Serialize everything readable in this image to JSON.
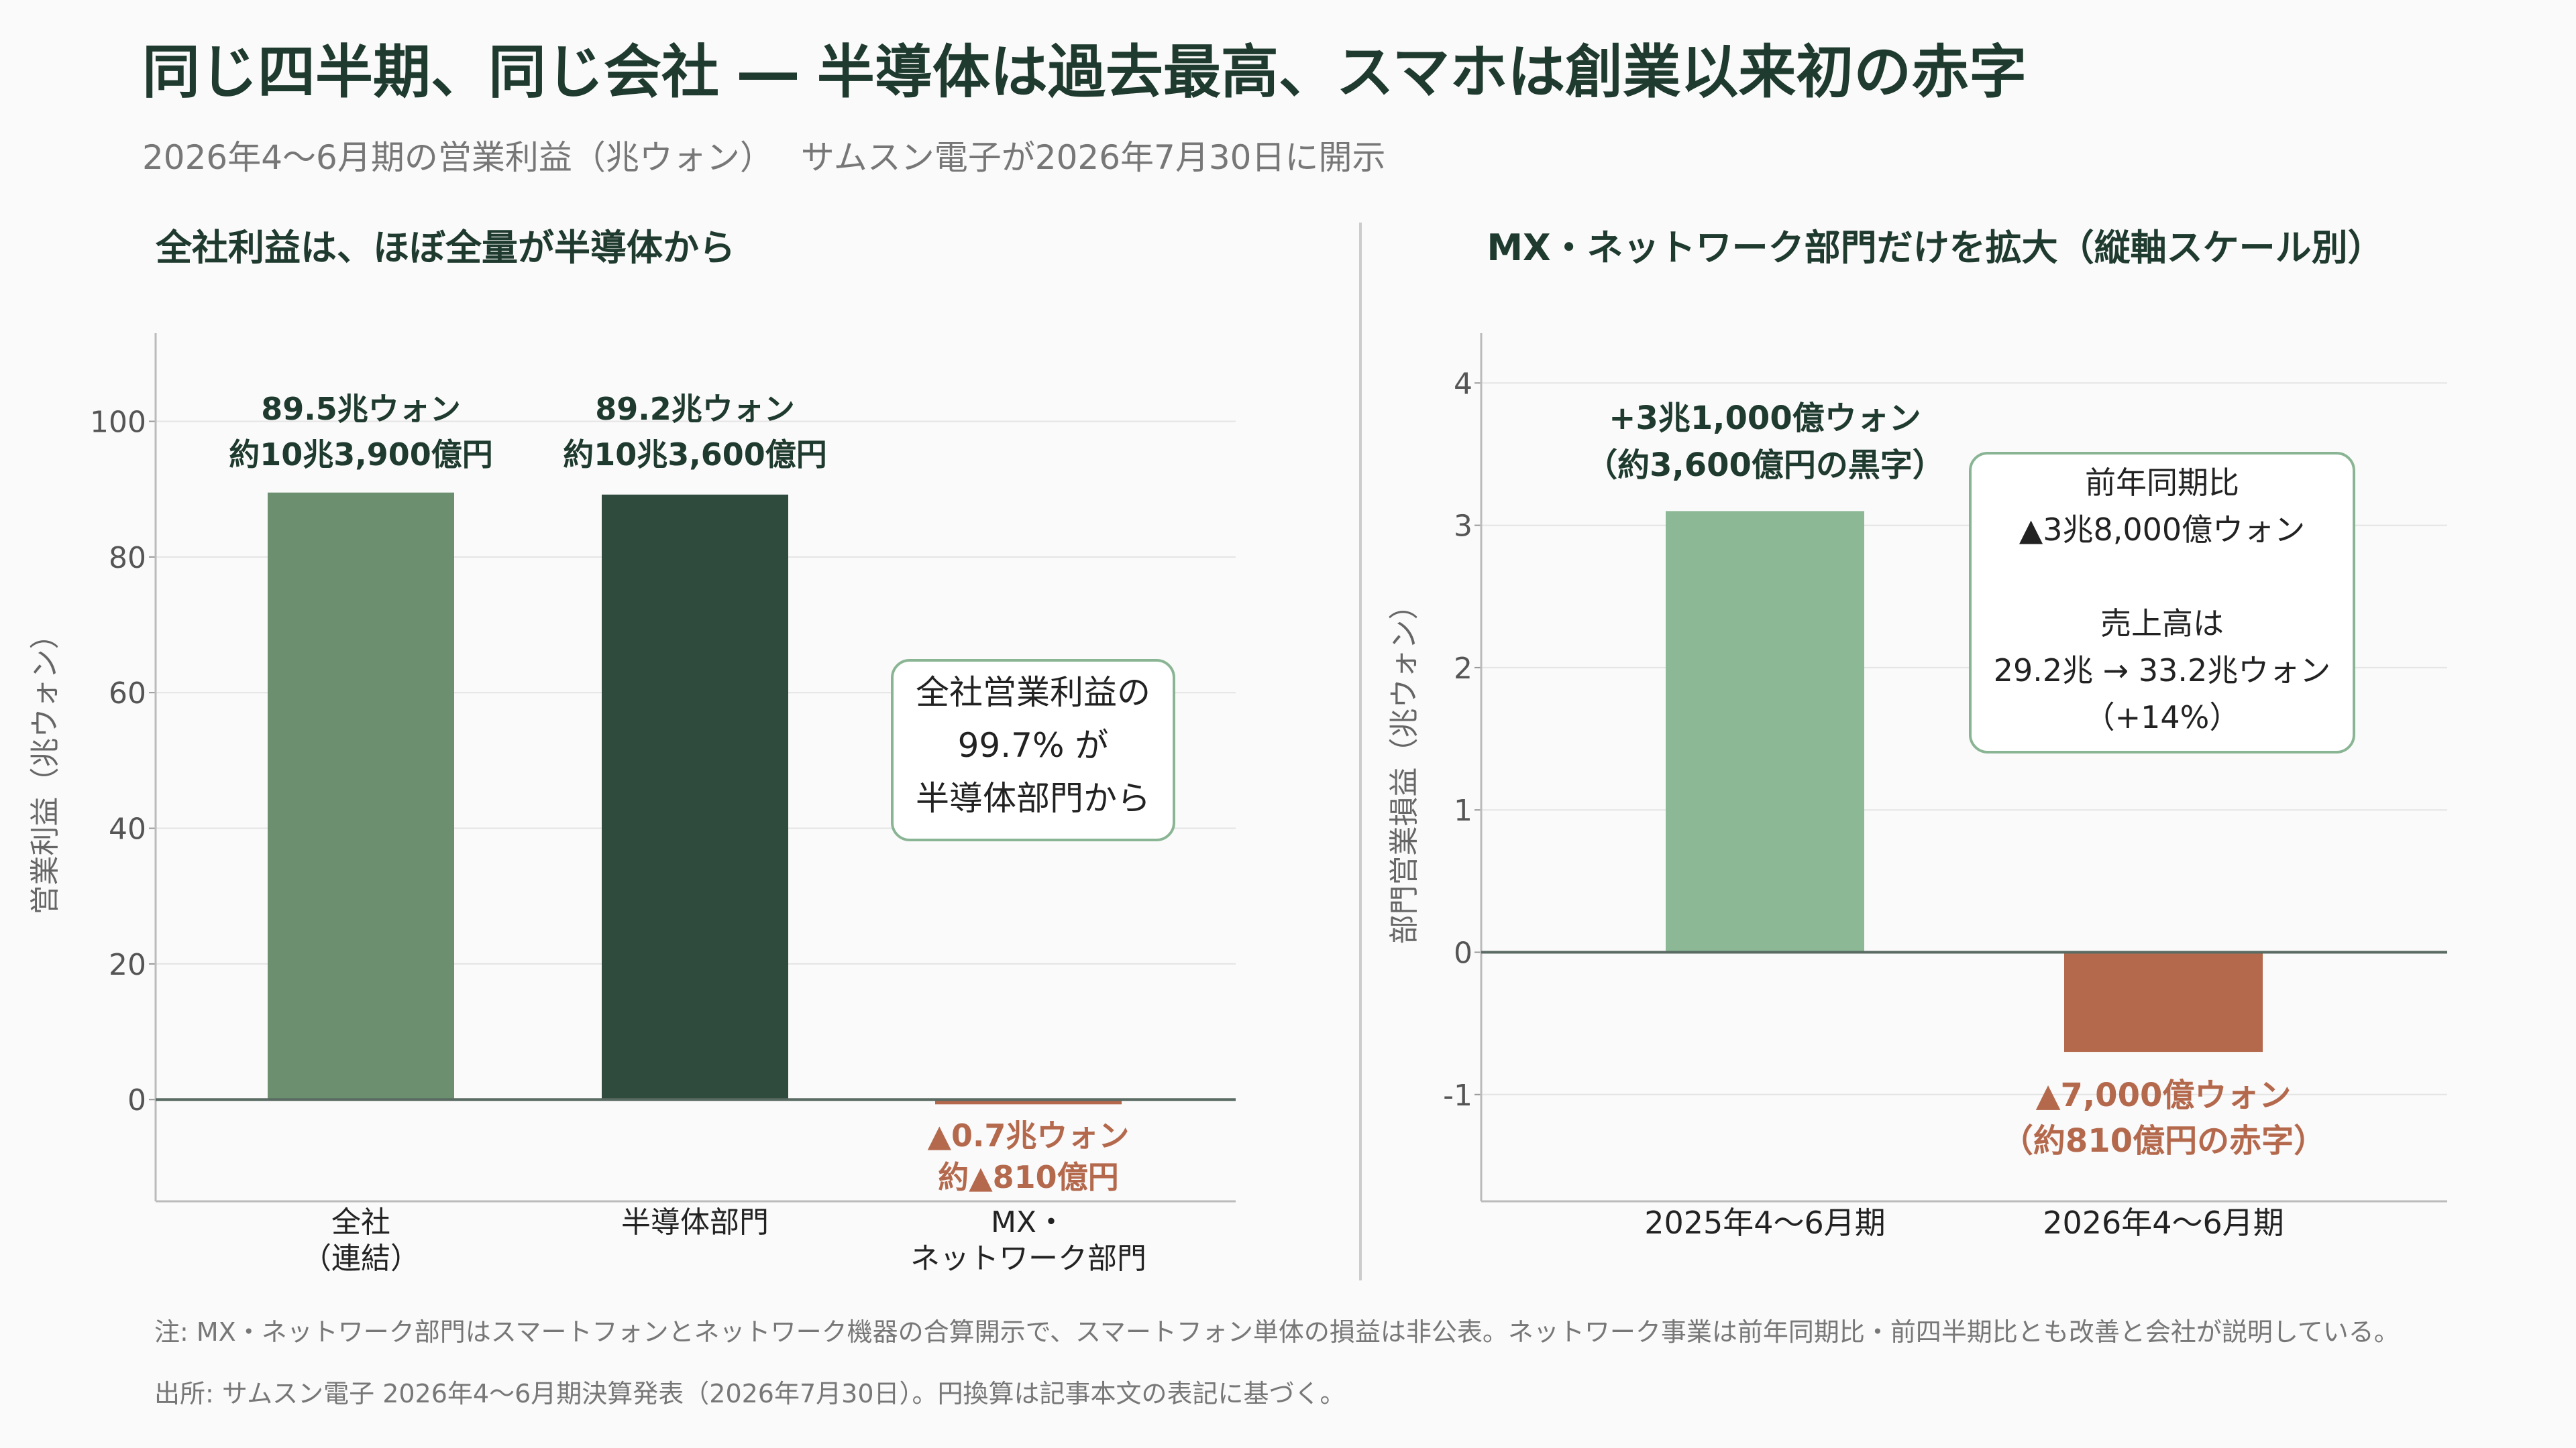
{
  "title": "同じ四半期、同じ会社 ― 半導体は過去最高、スマホは創業以来初の赤字",
  "subtitle": "2026年4〜6月期の営業利益（兆ウォン）　 サムスン電子が2026年7月30日に開示",
  "colors": {
    "total": "#6b8f6f",
    "semi": "#2e4b3e",
    "negative": "#b4694d",
    "light": "#8cb896",
    "title": "#1f3a2e",
    "muted": "#777777",
    "grid": "#e4e4e4",
    "axis": "#5a6b63",
    "box_border": "#8ab594"
  },
  "left_panel": {
    "heading": "全社利益は、ほぼ全量が半導体から",
    "callout": [
      "全社営業利益の",
      "99.7% が",
      "半導体部門から"
    ]
  },
  "right_panel": {
    "heading": "MX・ネットワーク部門だけを拡大（縦軸スケール別）",
    "callout": [
      "前年同期比",
      "▲3兆8,000億ウォン",
      "",
      "売上高は",
      "29.2兆 → 33.2兆ウォン",
      "（+14%）"
    ]
  },
  "chart_data": [
    {
      "type": "bar",
      "ylabel": "営業利益（兆ウォン）",
      "ylim": [
        -15,
        113
      ],
      "yticks": [
        0,
        20,
        40,
        60,
        80,
        100
      ],
      "grid": true,
      "categories": [
        [
          "全社",
          "（連結）"
        ],
        [
          "半導体部門"
        ],
        [
          "MX・",
          "ネットワーク部門"
        ]
      ],
      "values": [
        89.5,
        89.2,
        -0.7
      ],
      "bar_colors": [
        "total",
        "semi",
        "negative"
      ],
      "data_labels": [
        [
          "89.5兆ウォン",
          "約10兆3,900億円"
        ],
        [
          "89.2兆ウォン",
          "約10兆3,600億円"
        ],
        [
          "▲0.7兆ウォン",
          "約▲810億円"
        ]
      ]
    },
    {
      "type": "bar",
      "ylabel": "部門営業損益（兆ウォン）",
      "ylim": [
        -1.75,
        4.35
      ],
      "yticks": [
        -1,
        0,
        1,
        2,
        3,
        4
      ],
      "grid": true,
      "categories": [
        [
          "2025年4〜6月期"
        ],
        [
          "2026年4〜6月期"
        ]
      ],
      "values": [
        3.1,
        -0.7
      ],
      "bar_colors": [
        "light",
        "negative"
      ],
      "data_labels": [
        [
          "+3兆1,000億ウォン",
          "（約3,600億円の黒字）"
        ],
        [
          "▲7,000億ウォン",
          "（約810億円の赤字）"
        ]
      ]
    }
  ],
  "footnotes": [
    "注: MX・ネットワーク部門はスマートフォンとネットワーク機器の合算開示で、スマートフォン単体の損益は非公表。ネットワーク事業は前年同期比・前四半期比とも改善と会社が説明している。",
    "出所: サムスン電子 2026年4〜6月期決算発表（2026年7月30日）。円換算は記事本文の表記に基づく。"
  ]
}
